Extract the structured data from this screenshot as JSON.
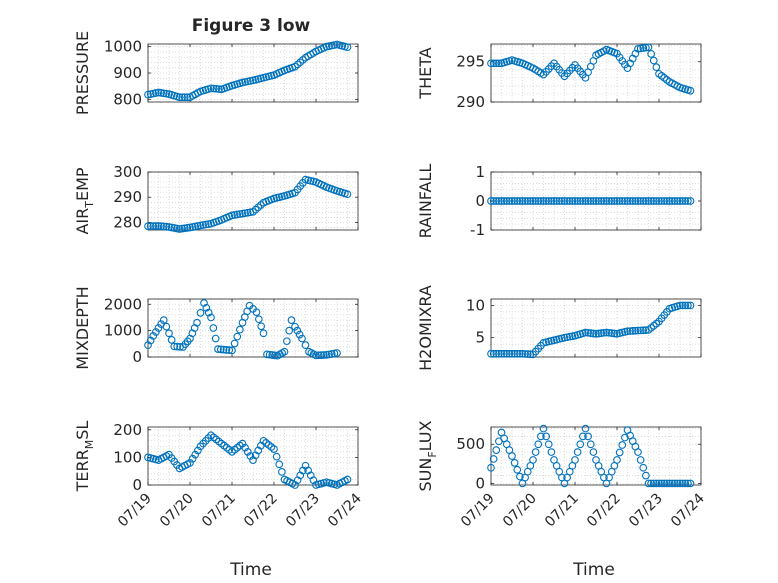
{
  "figure_title": "Figure 3 low",
  "x_axis_label": "Time",
  "x_tick_labels": [
    "07/19",
    "07/20",
    "07/21",
    "07/22",
    "07/23",
    "07/24"
  ],
  "marker_color": "#0072BD",
  "chart_data": [
    {
      "type": "scatter",
      "id": "pressure",
      "ylabel": "PRESSURE",
      "title": "Figure 3 low",
      "ylim": [
        790,
        1010
      ],
      "yticks": [
        800,
        900,
        1000
      ],
      "xlabel": "Time",
      "xticks": [
        "07/19",
        "07/20",
        "07/21",
        "07/22",
        "07/23",
        "07/24"
      ],
      "grid": true,
      "points": [
        [
          "07/19 00:00",
          818
        ],
        [
          "07/19 06:00",
          826
        ],
        [
          "07/19 12:00",
          820
        ],
        [
          "07/19 18:00",
          808
        ],
        [
          "07/20 00:00",
          808
        ],
        [
          "07/20 06:00",
          830
        ],
        [
          "07/20 12:00",
          842
        ],
        [
          "07/20 18:00",
          838
        ],
        [
          "07/21 00:00",
          852
        ],
        [
          "07/21 06:00",
          864
        ],
        [
          "07/21 12:00",
          872
        ],
        [
          "07/21 18:00",
          882
        ],
        [
          "07/22 00:00",
          892
        ],
        [
          "07/22 06:00",
          910
        ],
        [
          "07/22 12:00",
          924
        ],
        [
          "07/22 18:00",
          958
        ],
        [
          "07/23 00:00",
          982
        ],
        [
          "07/23 06:00",
          1000
        ],
        [
          "07/23 12:00",
          1008
        ],
        [
          "07/23 18:00",
          998
        ]
      ]
    },
    {
      "type": "scatter",
      "id": "theta",
      "ylabel": "THETA",
      "ylim": [
        290,
        297.2
      ],
      "yticks": [
        290,
        295
      ],
      "xlabel": "Time",
      "xticks": [
        "07/19",
        "07/20",
        "07/21",
        "07/22",
        "07/23",
        "07/24"
      ],
      "grid": true,
      "points": [
        [
          "07/19 00:00",
          294.8
        ],
        [
          "07/19 06:00",
          294.8
        ],
        [
          "07/19 12:00",
          295.2
        ],
        [
          "07/19 18:00",
          294.8
        ],
        [
          "07/20 00:00",
          294.2
        ],
        [
          "07/20 06:00",
          293.4
        ],
        [
          "07/20 12:00",
          294.8
        ],
        [
          "07/20 18:00",
          293.2
        ],
        [
          "07/21 00:00",
          294.6
        ],
        [
          "07/21 06:00",
          293.0
        ],
        [
          "07/21 12:00",
          295.8
        ],
        [
          "07/21 18:00",
          296.5
        ],
        [
          "07/22 00:00",
          296.0
        ],
        [
          "07/22 06:00",
          294.2
        ],
        [
          "07/22 12:00",
          296.6
        ],
        [
          "07/22 18:00",
          296.8
        ],
        [
          "07/23 00:00",
          293.5
        ],
        [
          "07/23 06:00",
          292.5
        ],
        [
          "07/23 12:00",
          291.8
        ],
        [
          "07/23 18:00",
          291.4
        ]
      ]
    },
    {
      "type": "scatter",
      "id": "air_temp",
      "ylabel": "AIR_TEMP",
      "ylim": [
        277,
        300
      ],
      "yticks": [
        280,
        290,
        300
      ],
      "xlabel": "Time",
      "xticks": [
        "07/19",
        "07/20",
        "07/21",
        "07/22",
        "07/23",
        "07/24"
      ],
      "grid": true,
      "points": [
        [
          "07/19 00:00",
          278.5
        ],
        [
          "07/19 06:00",
          278.6
        ],
        [
          "07/19 12:00",
          278.2
        ],
        [
          "07/19 18:00",
          277.4
        ],
        [
          "07/20 00:00",
          278.0
        ],
        [
          "07/20 06:00",
          278.8
        ],
        [
          "07/20 12:00",
          279.5
        ],
        [
          "07/20 18:00",
          281.0
        ],
        [
          "07/21 00:00",
          282.8
        ],
        [
          "07/21 06:00",
          283.5
        ],
        [
          "07/21 12:00",
          284.2
        ],
        [
          "07/21 18:00",
          287.8
        ],
        [
          "07/22 00:00",
          289.5
        ],
        [
          "07/22 06:00",
          290.5
        ],
        [
          "07/22 12:00",
          291.8
        ],
        [
          "07/22 18:00",
          297.0
        ],
        [
          "07/23 00:00",
          296.0
        ],
        [
          "07/23 06:00",
          294.0
        ],
        [
          "07/23 12:00",
          292.5
        ],
        [
          "07/23 18:00",
          291.2
        ]
      ]
    },
    {
      "type": "scatter",
      "id": "rainfall",
      "ylabel": "RAINFALL",
      "ylim": [
        -1,
        1
      ],
      "yticks": [
        -1,
        0,
        1
      ],
      "xlabel": "Time",
      "xticks": [
        "07/19",
        "07/20",
        "07/21",
        "07/22",
        "07/23",
        "07/24"
      ],
      "grid": true,
      "points": [
        [
          "07/19 00:00",
          0
        ],
        [
          "07/19 06:00",
          0
        ],
        [
          "07/19 12:00",
          0
        ],
        [
          "07/19 18:00",
          0
        ],
        [
          "07/20 00:00",
          0
        ],
        [
          "07/20 06:00",
          0
        ],
        [
          "07/20 12:00",
          0
        ],
        [
          "07/20 18:00",
          0
        ],
        [
          "07/21 00:00",
          0
        ],
        [
          "07/21 06:00",
          0
        ],
        [
          "07/21 12:00",
          0
        ],
        [
          "07/21 18:00",
          0
        ],
        [
          "07/22 00:00",
          0
        ],
        [
          "07/22 06:00",
          0
        ],
        [
          "07/22 12:00",
          0
        ],
        [
          "07/22 18:00",
          0
        ],
        [
          "07/23 00:00",
          0
        ],
        [
          "07/23 06:00",
          0
        ],
        [
          "07/23 12:00",
          0
        ],
        [
          "07/23 18:00",
          0
        ]
      ]
    },
    {
      "type": "scatter",
      "id": "mixdepth",
      "ylabel": "MIXDEPTH",
      "ylim": [
        0,
        2200
      ],
      "yticks": [
        0,
        1000,
        2000
      ],
      "xlabel": "Time",
      "xticks": [
        "07/19",
        "07/20",
        "07/21",
        "07/22",
        "07/23",
        "07/24"
      ],
      "grid": true,
      "points": [
        [
          "07/19 00:00",
          450
        ],
        [
          "07/19 03:00",
          800
        ],
        [
          "07/19 06:00",
          1100
        ],
        [
          "07/19 09:00",
          1400
        ],
        [
          "07/19 12:00",
          900
        ],
        [
          "07/19 15:00",
          400
        ],
        [
          "07/19 20:00",
          380
        ],
        [
          "07/20 00:00",
          700
        ],
        [
          "07/20 04:00",
          1300
        ],
        [
          "07/20 08:00",
          2050
        ],
        [
          "07/20 12:00",
          1500
        ],
        [
          "07/20 16:00",
          300
        ],
        [
          "07/21 00:00",
          250
        ],
        [
          "07/21 06:00",
          1300
        ],
        [
          "07/21 10:00",
          1950
        ],
        [
          "07/21 14:00",
          1700
        ],
        [
          "07/21 18:00",
          900
        ],
        [
          "07/21 20:00",
          100
        ],
        [
          "07/22 02:00",
          50
        ],
        [
          "07/22 06:00",
          200
        ],
        [
          "07/22 10:00",
          1400
        ],
        [
          "07/22 12:00",
          1150
        ],
        [
          "07/22 16:00",
          700
        ],
        [
          "07/22 20:00",
          200
        ],
        [
          "07/23 00:00",
          60
        ],
        [
          "07/23 06:00",
          80
        ],
        [
          "07/23 12:00",
          150
        ]
      ]
    },
    {
      "type": "scatter",
      "id": "h2omixra",
      "ylabel": "H2OMIXRA",
      "ylim": [
        2,
        11
      ],
      "yticks": [
        5,
        10
      ],
      "xlabel": "Time",
      "xticks": [
        "07/19",
        "07/20",
        "07/21",
        "07/22",
        "07/23",
        "07/24"
      ],
      "grid": true,
      "points": [
        [
          "07/19 00:00",
          2.5
        ],
        [
          "07/19 06:00",
          2.5
        ],
        [
          "07/19 12:00",
          2.5
        ],
        [
          "07/19 18:00",
          2.5
        ],
        [
          "07/20 00:00",
          2.4
        ],
        [
          "07/20 06:00",
          4.2
        ],
        [
          "07/20 12:00",
          4.6
        ],
        [
          "07/20 18:00",
          5.0
        ],
        [
          "07/21 00:00",
          5.3
        ],
        [
          "07/21 06:00",
          5.8
        ],
        [
          "07/21 12:00",
          5.6
        ],
        [
          "07/21 18:00",
          5.8
        ],
        [
          "07/22 00:00",
          5.6
        ],
        [
          "07/22 06:00",
          6.0
        ],
        [
          "07/22 12:00",
          6.1
        ],
        [
          "07/22 18:00",
          6.2
        ],
        [
          "07/23 00:00",
          7.5
        ],
        [
          "07/23 06:00",
          9.5
        ],
        [
          "07/23 12:00",
          10.0
        ],
        [
          "07/23 18:00",
          10.0
        ]
      ]
    },
    {
      "type": "scatter",
      "id": "terr_msl",
      "ylabel": "TERR_MSL",
      "ylim": [
        0,
        210
      ],
      "yticks": [
        0,
        100,
        200
      ],
      "xlabel": "Time",
      "xticks": [
        "07/19",
        "07/20",
        "07/21",
        "07/22",
        "07/23",
        "07/24"
      ],
      "grid": true,
      "points": [
        [
          "07/19 00:00",
          100
        ],
        [
          "07/19 06:00",
          90
        ],
        [
          "07/19 12:00",
          110
        ],
        [
          "07/19 18:00",
          60
        ],
        [
          "07/20 00:00",
          80
        ],
        [
          "07/20 06:00",
          140
        ],
        [
          "07/20 12:00",
          180
        ],
        [
          "07/20 18:00",
          150
        ],
        [
          "07/21 00:00",
          120
        ],
        [
          "07/21 06:00",
          150
        ],
        [
          "07/21 12:00",
          90
        ],
        [
          "07/21 18:00",
          160
        ],
        [
          "07/22 00:00",
          130
        ],
        [
          "07/22 06:00",
          20
        ],
        [
          "07/22 12:00",
          0
        ],
        [
          "07/22 18:00",
          70
        ],
        [
          "07/23 00:00",
          0
        ],
        [
          "07/23 06:00",
          10
        ],
        [
          "07/23 12:00",
          0
        ],
        [
          "07/23 18:00",
          20
        ]
      ]
    },
    {
      "type": "scatter",
      "id": "sun_flux",
      "ylabel": "SUN_FLUX",
      "ylim": [
        -20,
        720
      ],
      "yticks": [
        0,
        500
      ],
      "xlabel": "Time",
      "xticks": [
        "07/19",
        "07/20",
        "07/21",
        "07/22",
        "07/23",
        "07/24"
      ],
      "grid": true,
      "points": [
        [
          "07/19 00:00",
          200
        ],
        [
          "07/19 06:00",
          650
        ],
        [
          "07/19 12:00",
          350
        ],
        [
          "07/19 18:00",
          0
        ],
        [
          "07/20 00:00",
          300
        ],
        [
          "07/20 06:00",
          700
        ],
        [
          "07/20 12:00",
          300
        ],
        [
          "07/20 18:00",
          0
        ],
        [
          "07/21 00:00",
          300
        ],
        [
          "07/21 06:00",
          700
        ],
        [
          "07/21 12:00",
          300
        ],
        [
          "07/21 18:00",
          0
        ],
        [
          "07/22 00:00",
          300
        ],
        [
          "07/22 06:00",
          680
        ],
        [
          "07/22 12:00",
          400
        ],
        [
          "07/22 18:00",
          0
        ],
        [
          "07/23 00:00",
          0
        ],
        [
          "07/23 06:00",
          0
        ],
        [
          "07/23 12:00",
          0
        ],
        [
          "07/23 18:00",
          0
        ]
      ]
    }
  ]
}
